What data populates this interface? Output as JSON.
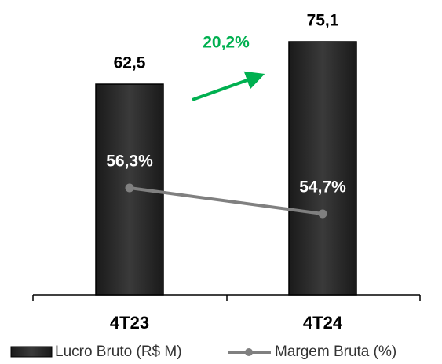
{
  "chart_data": {
    "type": "bar",
    "categories": [
      "4T23",
      "4T24"
    ],
    "series": [
      {
        "name": "Lucro Bruto (R$ M)",
        "type": "bar",
        "color": "#262626",
        "values": [
          62.5,
          75.1
        ],
        "value_labels": [
          "62,5",
          "75,1"
        ]
      },
      {
        "name": "Margem Bruta (%)",
        "type": "line",
        "axis": "y2",
        "color": "#808080",
        "values": [
          56.3,
          54.7
        ],
        "value_labels": [
          "56,3%",
          "54,7%"
        ]
      }
    ],
    "annotation": {
      "text": "20,2%",
      "color": "#00b050"
    },
    "ylim": [
      0,
      80
    ],
    "y2lim": [
      49.7,
      66.35
    ]
  }
}
